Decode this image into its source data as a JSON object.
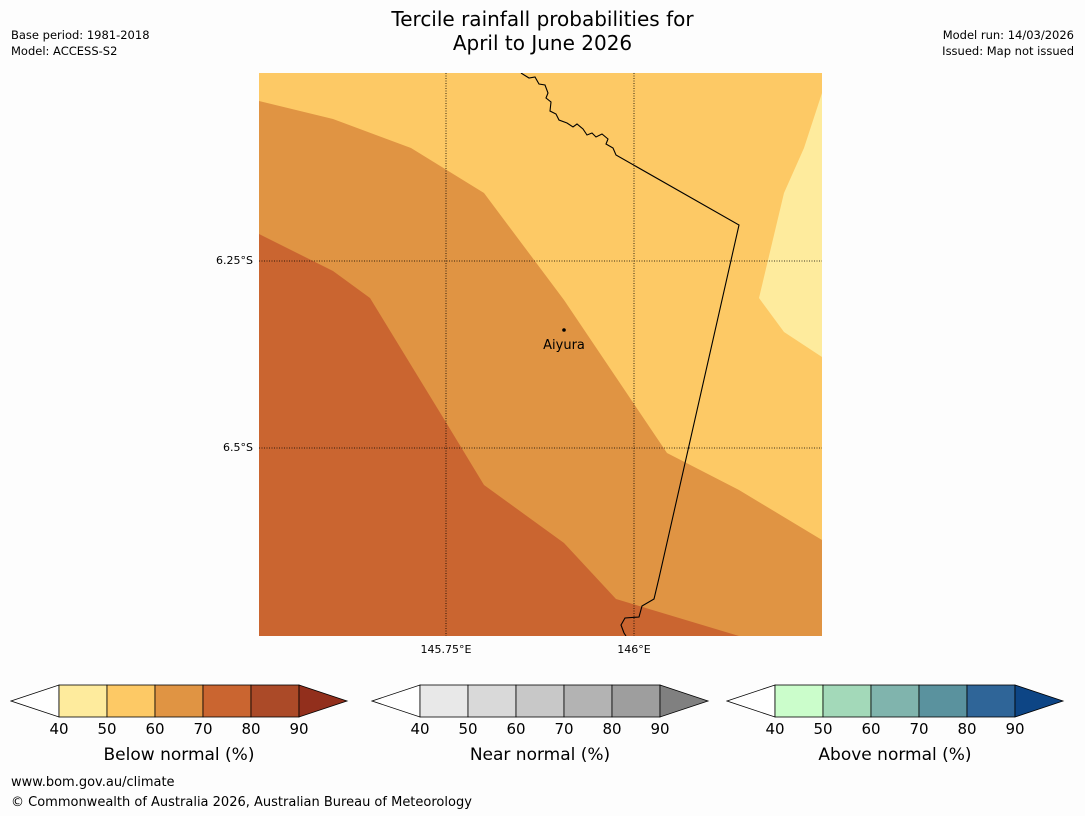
{
  "header": {
    "title_line1": "Tercile rainfall probabilities for",
    "title_line2": "April to June 2026",
    "base_period": "Base period: 1981-2018",
    "model": "Model: ACCESS-S2",
    "model_run": "Model run: 14/03/2026",
    "issued": "Issued: Map not issued"
  },
  "map": {
    "lat_ticks": [
      "6.25°S",
      "6.5°S"
    ],
    "lon_ticks": [
      "145.75°E",
      "146°E"
    ],
    "place": {
      "name": "Aiyura"
    },
    "zone_colors": [
      "#fdc965",
      "#e09443",
      "#ca6530",
      "#feeb9d"
    ]
  },
  "legends": [
    {
      "label": "Below normal (%)",
      "ticks": [
        "40",
        "50",
        "60",
        "70",
        "80",
        "90"
      ],
      "colors": [
        "#feeb9d",
        "#fdc965",
        "#e09443",
        "#ca6530",
        "#ab4a28"
      ],
      "extend_color": "#922f1c"
    },
    {
      "label": "Near normal (%)",
      "ticks": [
        "40",
        "50",
        "60",
        "70",
        "80",
        "90"
      ],
      "colors": [
        "#e8e8e8",
        "#d9d9d9",
        "#c8c8c8",
        "#b3b3b3",
        "#9e9e9e"
      ],
      "extend_color": "#808080"
    },
    {
      "label": "Above normal (%)",
      "ticks": [
        "40",
        "50",
        "60",
        "70",
        "80",
        "90"
      ],
      "colors": [
        "#cbfdcb",
        "#a3d9b9",
        "#80b4ad",
        "#5a929e",
        "#2f6598"
      ],
      "extend_color": "#0d4585"
    }
  ],
  "footer": {
    "url": "www.bom.gov.au/climate",
    "copyright": "© Commonwealth of Australia 2026, Australian Bureau of Meteorology"
  }
}
